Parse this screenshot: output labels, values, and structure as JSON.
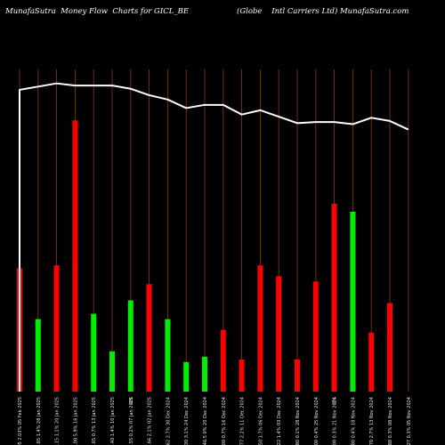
{
  "header": {
    "left_title": "MunafaSutra  Money Flow  Charts for GICL_BE",
    "right_title": "(Globe    Intl Carriers Ltd) MunafaSutra.com"
  },
  "chart_data": {
    "type": "bar",
    "title": "MunafaSutra  Money Flow  Charts for GICL_BE",
    "subtitle": "(Globe    Intl Carriers Ltd) MunafaSutra.com",
    "categories": [
      "43.05 2.03% 05 Feb 2025",
      "43.65 1.4% 28 Jan 2025",
      "44.15 1.1% 20 Jan 2025",
      "44.00 5.9% 16 Jan 2025",
      "44.65 0.7% 13 Jan 2025",
      "44.40 1.4% 10 Jan 2025",
      "44.55 0.2% 07 Jan 2025",
      "45.66 2.1% 02 Jan 2025",
      "44.62 2.7% 30 Dec 2024",
      "46.30 3.1% 24 Dec 2024",
      "46.5 0% 20 Dec 2024",
      "46.00 0.7% 16 Dec 2024",
      "45.77 2.2% 11 Dec 2024",
      "46.50 1.7% 06 Dec 2024",
      "45.22 1.4% 03 Dec 2024",
      "44.80 0.1% 28 Nov 2024",
      "46.00 0.4% 25 Nov 2024",
      "46.00 0.3% 21 Nov 2024",
      "45.80 0.4% 18 Nov 2024",
      "44.70 2.7% 13 Nov 2024",
      "46.88 0.3% 08 Nov 2024",
      "47.27 0.3% 05 Nov 2024"
    ],
    "extra_tick_labels": [
      {
        "index": 6,
        "text": "0%"
      },
      {
        "index": 17,
        "text": "0%"
      }
    ],
    "values": [
      46,
      27,
      47,
      101,
      29,
      15,
      34,
      40,
      27,
      11,
      13,
      23,
      12,
      47,
      43,
      12,
      41,
      70,
      67,
      22,
      33,
      0
    ],
    "bar_colors": [
      "red",
      "lime",
      "red",
      "red",
      "lime",
      "lime",
      "lime",
      "red",
      "lime",
      "lime",
      "lime",
      "red",
      "red",
      "red",
      "red",
      "red",
      "red",
      "red",
      "lime",
      "red",
      "red",
      "red"
    ],
    "line": {
      "name": "price",
      "values": [
        48.1,
        48.4,
        48.7,
        48.5,
        48.5,
        48.5,
        48.2,
        47.6,
        47.2,
        46.4,
        46.7,
        46.7,
        45.8,
        46.2,
        45.6,
        45.0,
        45.1,
        45.1,
        44.9,
        45.5,
        45.2,
        44.4
      ]
    },
    "ylim_bars": [
      0,
      120
    ],
    "ylim_line": [
      20,
      50
    ],
    "xlabel": "",
    "ylabel": "",
    "grid": true,
    "colors": {
      "background": "#000000",
      "grid_line": "#8b3a00",
      "up_bar": "#00ee00",
      "down_bar": "#ff0000",
      "line": "#ffffff",
      "text": "#ffffff"
    }
  }
}
